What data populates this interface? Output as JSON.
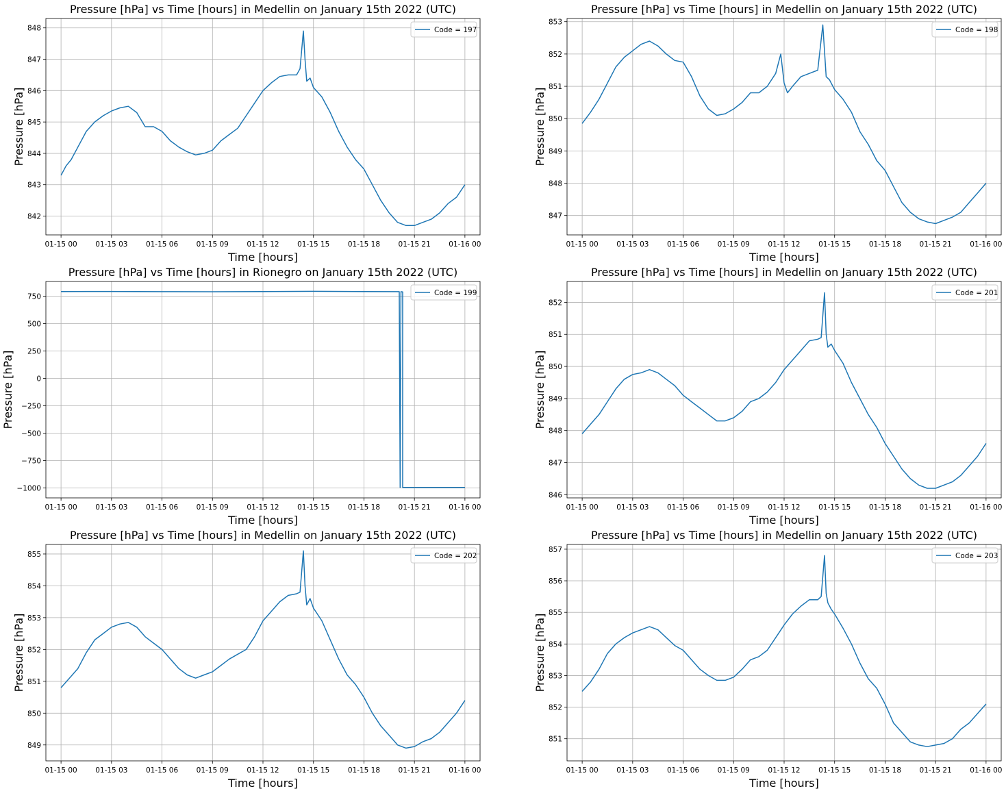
{
  "chart_data": [
    {
      "type": "line",
      "title": "Pressure [hPa] vs Time [hours] in Medellin on January 15th 2022 (UTC)",
      "xlabel": "Time [hours]",
      "ylabel": "Pressure [hPa]",
      "xticks": [
        "01-15 00",
        "01-15 03",
        "01-15 06",
        "01-15 09",
        "01-15 12",
        "01-15 15",
        "01-15 18",
        "01-15 21",
        "01-16 00"
      ],
      "yticks": [
        842,
        843,
        844,
        845,
        846,
        847,
        848
      ],
      "ylim": [
        841.4,
        848.3
      ],
      "grid": true,
      "legend": "upper right",
      "series": [
        {
          "name": "Code = 197",
          "x": [
            0,
            0.3,
            0.6,
            1,
            1.5,
            2,
            2.5,
            3,
            3.5,
            4,
            4.5,
            5,
            5.5,
            6,
            6.5,
            7,
            7.5,
            8,
            8.5,
            9,
            9.5,
            10,
            10.5,
            11,
            11.5,
            12,
            12.5,
            13,
            13.5,
            14,
            14.2,
            14.4,
            14.5,
            14.6,
            14.8,
            15,
            15.5,
            16,
            16.5,
            17,
            17.5,
            18,
            18.5,
            19,
            19.5,
            20,
            20.5,
            21,
            21.5,
            22,
            22.5,
            23,
            23.5,
            24
          ],
          "y": [
            843.3,
            843.6,
            843.8,
            844.2,
            844.7,
            845.0,
            845.2,
            845.35,
            845.45,
            845.5,
            845.3,
            844.85,
            844.85,
            844.7,
            844.4,
            844.2,
            844.05,
            843.95,
            844.0,
            844.1,
            844.4,
            844.6,
            844.8,
            845.2,
            845.6,
            846.0,
            846.25,
            846.45,
            846.5,
            846.5,
            846.7,
            847.9,
            847.0,
            846.3,
            846.4,
            846.1,
            845.8,
            845.3,
            844.7,
            844.2,
            843.8,
            843.5,
            843.0,
            842.5,
            842.1,
            841.8,
            841.7,
            841.7,
            841.8,
            841.9,
            842.1,
            842.4,
            842.6,
            843.0
          ]
        }
      ]
    },
    {
      "type": "line",
      "title": "Pressure [hPa] vs Time [hours] in Medellin on January 15th 2022 (UTC)",
      "xlabel": "Time [hours]",
      "ylabel": "Pressure [hPa]",
      "xticks": [
        "01-15 00",
        "01-15 03",
        "01-15 06",
        "01-15 09",
        "01-15 12",
        "01-15 15",
        "01-15 18",
        "01-15 21",
        "01-16 00"
      ],
      "yticks": [
        847,
        848,
        849,
        850,
        851,
        852,
        853
      ],
      "ylim": [
        846.4,
        853.1
      ],
      "grid": true,
      "legend": "upper right",
      "series": [
        {
          "name": "Code = 198",
          "x": [
            0,
            0.5,
            1,
            1.5,
            2,
            2.5,
            3,
            3.5,
            4,
            4.5,
            5,
            5.5,
            6,
            6.5,
            7,
            7.5,
            8,
            8.5,
            9,
            9.5,
            10,
            10.5,
            11,
            11.5,
            11.8,
            12,
            12.2,
            12.5,
            13,
            13.5,
            14,
            14.3,
            14.5,
            14.7,
            15,
            15.5,
            16,
            16.5,
            17,
            17.5,
            18,
            18.5,
            19,
            19.5,
            20,
            20.5,
            21,
            21.5,
            22,
            22.5,
            23,
            23.5,
            24
          ],
          "y": [
            849.85,
            850.2,
            850.6,
            851.1,
            851.6,
            851.9,
            852.1,
            852.3,
            852.4,
            852.25,
            852.0,
            851.8,
            851.75,
            851.3,
            850.7,
            850.3,
            850.1,
            850.15,
            850.3,
            850.5,
            850.8,
            850.8,
            851.0,
            851.4,
            852.0,
            851.1,
            850.8,
            851.0,
            851.3,
            851.4,
            851.5,
            852.9,
            851.3,
            851.2,
            850.9,
            850.6,
            850.2,
            849.6,
            849.2,
            848.7,
            848.4,
            847.9,
            847.4,
            847.1,
            846.9,
            846.8,
            846.75,
            846.85,
            846.95,
            847.1,
            847.4,
            847.7,
            848.0
          ]
        }
      ]
    },
    {
      "type": "line",
      "title": "Pressure [hPa] vs Time [hours] in Rionegro on January 15th 2022 (UTC)",
      "xlabel": "Time [hours]",
      "ylabel": "Pressure [hPa]",
      "xticks": [
        "01-15 00",
        "01-15 03",
        "01-15 06",
        "01-15 09",
        "01-15 12",
        "01-15 15",
        "01-15 18",
        "01-15 21",
        "01-16 00"
      ],
      "yticks": [
        -1000,
        -750,
        -500,
        -250,
        0,
        250,
        500,
        750
      ],
      "ylim": [
        -1090,
        885
      ],
      "grid": true,
      "legend": "upper right",
      "series": [
        {
          "name": "Code = 199",
          "x": [
            0,
            3,
            6,
            9,
            12,
            15,
            18,
            20.1,
            20.15,
            20.2,
            20.3,
            20.3,
            24
          ],
          "y": [
            793,
            794,
            792,
            791,
            793,
            795,
            793,
            792,
            -995,
            792,
            790,
            -995,
            -995
          ]
        }
      ]
    },
    {
      "type": "line",
      "title": "Pressure [hPa] vs Time [hours] in Medellin on January 15th 2022 (UTC)",
      "xlabel": "Time [hours]",
      "ylabel": "Pressure [hPa]",
      "xticks": [
        "01-15 00",
        "01-15 03",
        "01-15 06",
        "01-15 09",
        "01-15 12",
        "01-15 15",
        "01-15 18",
        "01-15 21",
        "01-16 00"
      ],
      "yticks": [
        846,
        847,
        848,
        849,
        850,
        851,
        852
      ],
      "ylim": [
        845.9,
        852.65
      ],
      "grid": true,
      "legend": "upper right",
      "series": [
        {
          "name": "Code = 201",
          "x": [
            0,
            0.5,
            1,
            1.5,
            2,
            2.5,
            3,
            3.5,
            4,
            4.5,
            5,
            5.5,
            6,
            6.5,
            7,
            7.5,
            8,
            8.5,
            9,
            9.5,
            10,
            10.5,
            11,
            11.5,
            12,
            12.5,
            13,
            13.5,
            14,
            14.2,
            14.4,
            14.5,
            14.6,
            14.8,
            15,
            15.5,
            16,
            16.5,
            17,
            17.5,
            18,
            18.5,
            19,
            19.5,
            20,
            20.5,
            21,
            21.5,
            22,
            22.5,
            23,
            23.5,
            24
          ],
          "y": [
            847.9,
            848.2,
            848.5,
            848.9,
            849.3,
            849.6,
            849.75,
            849.8,
            849.9,
            849.8,
            849.6,
            849.4,
            849.1,
            848.9,
            848.7,
            848.5,
            848.3,
            848.3,
            848.4,
            848.6,
            848.9,
            849.0,
            849.2,
            849.5,
            849.9,
            850.2,
            850.5,
            850.8,
            850.85,
            850.9,
            852.3,
            851.0,
            850.6,
            850.7,
            850.5,
            850.1,
            849.5,
            849.0,
            848.5,
            848.1,
            847.6,
            847.2,
            846.8,
            846.5,
            846.3,
            846.2,
            846.2,
            846.3,
            846.4,
            846.6,
            846.9,
            847.2,
            847.6
          ]
        }
      ]
    },
    {
      "type": "line",
      "title": "Pressure [hPa] vs Time [hours] in Medellin on January 15th 2022 (UTC)",
      "xlabel": "Time [hours]",
      "ylabel": "Pressure [hPa]",
      "xticks": [
        "01-15 00",
        "01-15 03",
        "01-15 06",
        "01-15 09",
        "01-15 12",
        "01-15 15",
        "01-15 18",
        "01-15 21",
        "01-16 00"
      ],
      "yticks": [
        849,
        850,
        851,
        852,
        853,
        854,
        855
      ],
      "ylim": [
        848.5,
        855.3
      ],
      "grid": true,
      "legend": "upper right",
      "series": [
        {
          "name": "Code = 202",
          "x": [
            0,
            0.5,
            1,
            1.5,
            2,
            2.5,
            3,
            3.5,
            4,
            4.5,
            5,
            5.5,
            6,
            6.5,
            7,
            7.5,
            8,
            8.5,
            9,
            9.5,
            10,
            10.5,
            11,
            11.5,
            12,
            12.5,
            13,
            13.5,
            14,
            14.2,
            14.4,
            14.5,
            14.6,
            14.8,
            15,
            15.5,
            16,
            16.5,
            17,
            17.5,
            18,
            18.5,
            19,
            19.5,
            20,
            20.5,
            21,
            21.5,
            22,
            22.5,
            23,
            23.5,
            24
          ],
          "y": [
            850.8,
            851.1,
            851.4,
            851.9,
            852.3,
            852.5,
            852.7,
            852.8,
            852.85,
            852.7,
            852.4,
            852.2,
            852.0,
            851.7,
            851.4,
            851.2,
            851.1,
            851.2,
            851.3,
            851.5,
            851.7,
            851.85,
            852.0,
            852.4,
            852.9,
            853.2,
            853.5,
            853.7,
            853.75,
            853.8,
            855.1,
            854.0,
            853.4,
            853.6,
            853.3,
            852.9,
            852.3,
            851.7,
            851.2,
            850.9,
            850.5,
            850.0,
            849.6,
            849.3,
            849.0,
            848.9,
            848.95,
            849.1,
            849.2,
            849.4,
            849.7,
            850.0,
            850.4
          ]
        }
      ]
    },
    {
      "type": "line",
      "title": "Pressure [hPa] vs Time [hours] in Medellin on January 15th 2022 (UTC)",
      "xlabel": "Time [hours]",
      "ylabel": "Pressure [hPa]",
      "xticks": [
        "01-15 00",
        "01-15 03",
        "01-15 06",
        "01-15 09",
        "01-15 12",
        "01-15 15",
        "01-15 18",
        "01-15 21",
        "01-16 00"
      ],
      "yticks": [
        851,
        852,
        853,
        854,
        855,
        856,
        857
      ],
      "ylim": [
        850.3,
        857.15
      ],
      "grid": true,
      "legend": "upper right",
      "series": [
        {
          "name": "Code = 203",
          "x": [
            0,
            0.5,
            1,
            1.5,
            2,
            2.5,
            3,
            3.5,
            4,
            4.5,
            5,
            5.5,
            6,
            6.5,
            7,
            7.5,
            8,
            8.5,
            9,
            9.5,
            10,
            10.5,
            11,
            11.5,
            12,
            12.5,
            13,
            13.5,
            14,
            14.2,
            14.4,
            14.5,
            14.6,
            14.8,
            15,
            15.5,
            16,
            16.5,
            17,
            17.5,
            18,
            18.5,
            19,
            19.5,
            20,
            20.5,
            21,
            21.5,
            22,
            22.5,
            23,
            23.5,
            24
          ],
          "y": [
            852.5,
            852.8,
            853.2,
            853.7,
            854.0,
            854.2,
            854.35,
            854.45,
            854.55,
            854.45,
            854.2,
            853.95,
            853.8,
            853.5,
            853.2,
            853.0,
            852.85,
            852.85,
            852.95,
            853.2,
            853.5,
            853.6,
            853.8,
            854.2,
            854.6,
            854.95,
            855.2,
            855.4,
            855.4,
            855.5,
            856.8,
            855.6,
            855.3,
            855.1,
            854.95,
            854.5,
            854.0,
            853.4,
            852.9,
            852.6,
            852.1,
            851.5,
            851.2,
            850.9,
            850.8,
            850.75,
            850.8,
            850.85,
            851.0,
            851.3,
            851.5,
            851.8,
            852.1
          ]
        }
      ]
    }
  ]
}
